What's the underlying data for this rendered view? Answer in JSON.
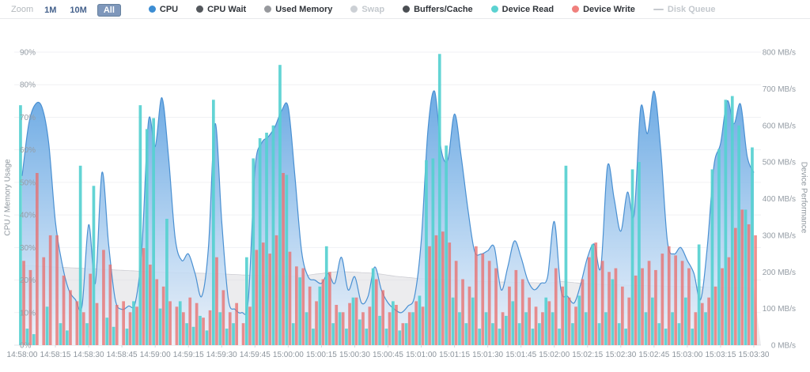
{
  "toolbar": {
    "zoom_label": "Zoom",
    "zoom_options": [
      {
        "label": "1M",
        "selected": false
      },
      {
        "label": "10M",
        "selected": false
      },
      {
        "label": "All",
        "selected": true
      }
    ]
  },
  "legend": {
    "items": [
      {
        "label": "CPU",
        "color": "#3c8dd3",
        "marker": "dot",
        "enabled": true
      },
      {
        "label": "CPU Wait",
        "color": "#54585d",
        "marker": "dot",
        "enabled": true
      },
      {
        "label": "Used Memory",
        "color": "#97999d",
        "marker": "dot",
        "enabled": true
      },
      {
        "label": "Swap",
        "color": "#ccd0d5",
        "marker": "dot",
        "enabled": false
      },
      {
        "label": "Buffers/Cache",
        "color": "#4a4e53",
        "marker": "dot",
        "enabled": true
      },
      {
        "label": "Device Read",
        "color": "#5bd2d1",
        "marker": "dot",
        "enabled": true
      },
      {
        "label": "Device Write",
        "color": "#f0807d",
        "marker": "dot",
        "enabled": true
      },
      {
        "label": "Disk Queue",
        "color": "#c6cacf",
        "marker": "line",
        "enabled": false
      }
    ]
  },
  "chart_data": {
    "type": "mixed-area-bar",
    "grid": true,
    "legend_position": "top",
    "x_start": "14:58:00",
    "x_end": "15:03:30",
    "point_interval_seconds": 3,
    "x_tick_interval_seconds": 15,
    "x_tick_labels": [
      "14:58:00",
      "14:58:15",
      "14:58:30",
      "14:58:45",
      "14:59:00",
      "14:59:15",
      "14:59:30",
      "14:59:45",
      "15:00:00",
      "15:00:15",
      "15:00:30",
      "15:00:45",
      "15:01:00",
      "15:01:15",
      "15:01:30",
      "15:01:45",
      "15:02:00",
      "15:02:15",
      "15:02:30",
      "15:02:45",
      "15:03:00",
      "15:03:15",
      "15:03:30"
    ],
    "left_axis": {
      "name": "CPU / Memory Usage",
      "min": 0,
      "max": 90,
      "tick_step": 10,
      "tick_suffix": "%"
    },
    "right_axis": {
      "name": "Device Performance",
      "min": 0,
      "max": 800,
      "tick_step": 100,
      "tick_suffix": " MB/s"
    },
    "series": [
      {
        "name": "CPU",
        "type": "area",
        "axis": "left",
        "unit": "%",
        "values": [
          52,
          68,
          74,
          73,
          62,
          38,
          25,
          17,
          14,
          12,
          37,
          19,
          53,
          31,
          14,
          11,
          12,
          13,
          30,
          69,
          61,
          76,
          58,
          33,
          26,
          28,
          22,
          15,
          30,
          68,
          38,
          14,
          11,
          10,
          14,
          54,
          62,
          64,
          67,
          72,
          73,
          52,
          29,
          21,
          20,
          19,
          22,
          19,
          27,
          17,
          21,
          13,
          15,
          24,
          17,
          13,
          11,
          10,
          12,
          15,
          32,
          66,
          78,
          60,
          57,
          71,
          58,
          42,
          29,
          28,
          29,
          30,
          17,
          24,
          32,
          27,
          20,
          17,
          19,
          21,
          38,
          17,
          15,
          13,
          19,
          27,
          31,
          24,
          55,
          45,
          35,
          47,
          40,
          73,
          65,
          78,
          60,
          32,
          28,
          30,
          26,
          22,
          14,
          30,
          55,
          62,
          75,
          68,
          74,
          58,
          53
        ]
      },
      {
        "name": "Used Memory",
        "type": "area",
        "axis": "left",
        "unit": "%",
        "values": [
          24.5,
          24.4,
          24.3,
          24.2,
          24.1,
          24,
          23.9,
          23.8,
          23.7,
          23.6,
          23.5,
          23.4,
          23.3,
          23.2,
          23.1,
          23,
          22.9,
          22.8,
          22.7,
          22.6,
          22.5,
          22.4,
          22.35,
          22.3,
          22.25,
          22.2,
          22.15,
          22.1,
          22.05,
          22,
          21.9,
          21.8,
          21.7,
          21.6,
          21.5,
          21.5,
          21.4,
          21.4,
          21.3,
          21.3,
          21.2,
          21.2,
          21.3,
          21.5,
          21.8,
          22,
          22.3,
          22.5,
          22.6,
          22.5,
          22.4,
          22.3,
          22.2,
          22,
          21.8,
          21.5,
          21.2,
          21,
          20.8,
          20.6,
          20.5,
          20.4,
          20.3,
          20.2,
          20.1,
          20,
          19.9,
          19.8,
          19.7,
          19.6,
          19.5,
          19.5,
          19.4,
          19.4,
          19.3,
          19.3,
          19.2,
          19.2,
          19.1,
          19.1,
          19.3,
          19.5,
          19.4,
          19.2,
          19,
          18.9,
          18.8,
          18.7,
          18.6,
          18.5,
          18.5,
          18.4,
          18.4,
          18.3,
          18.3,
          18.2,
          18.2,
          18.1,
          18.1,
          18,
          18,
          17.9,
          17.9,
          17.8,
          17.8,
          17.7,
          17.7,
          17.6,
          17.6,
          17.5,
          17.5
        ]
      },
      {
        "name": "Device Read",
        "type": "bar",
        "axis": "right",
        "unit": "MB/s",
        "values": [
          655,
          45,
          30,
          0,
          105,
          0,
          60,
          40,
          0,
          490,
          60,
          435,
          0,
          75,
          50,
          0,
          45,
          120,
          655,
          590,
          620,
          100,
          345,
          0,
          120,
          60,
          50,
          80,
          40,
          670,
          90,
          45,
          60,
          0,
          240,
          510,
          565,
          580,
          600,
          765,
          465,
          60,
          185,
          90,
          45,
          160,
          270,
          60,
          90,
          45,
          130,
          70,
          45,
          210,
          80,
          45,
          120,
          40,
          60,
          90,
          135,
          505,
          510,
          795,
          545,
          130,
          90,
          60,
          130,
          45,
          90,
          60,
          45,
          80,
          120,
          60,
          90,
          45,
          60,
          130,
          90,
          45,
          490,
          60,
          135,
          90,
          275,
          60,
          90,
          180,
          60,
          45,
          480,
          500,
          90,
          130,
          60,
          45,
          90,
          60,
          130,
          45,
          275,
          90,
          480,
          535,
          670,
          680,
          600,
          370,
          540
        ]
      },
      {
        "name": "Device Write",
        "type": "bar",
        "axis": "right",
        "unit": "MB/s",
        "values": [
          230,
          205,
          470,
          240,
          300,
          300,
          190,
          150,
          120,
          90,
          195,
          115,
          260,
          220,
          110,
          120,
          90,
          105,
          265,
          220,
          180,
          160,
          120,
          105,
          90,
          130,
          115,
          75,
          95,
          240,
          150,
          90,
          115,
          60,
          105,
          260,
          280,
          250,
          300,
          470,
          255,
          215,
          210,
          160,
          120,
          180,
          200,
          110,
          90,
          115,
          130,
          90,
          105,
          180,
          150,
          90,
          110,
          60,
          90,
          120,
          105,
          270,
          300,
          310,
          280,
          230,
          180,
          160,
          270,
          250,
          230,
          210,
          90,
          160,
          205,
          180,
          130,
          105,
          90,
          120,
          210,
          160,
          130,
          105,
          180,
          240,
          280,
          230,
          200,
          210,
          160,
          130,
          190,
          210,
          230,
          205,
          250,
          270,
          245,
          230,
          210,
          90,
          115,
          130,
          160,
          210,
          240,
          320,
          370,
          330,
          300
        ]
      }
    ],
    "colors": {
      "cpu_line": "#4a90d2",
      "cpu_gradient_top": "#4292dc",
      "cpu_gradient_bottom": "#edf3fb",
      "memory_fill": "#d9d9de",
      "memory_line": "#c9c9cf",
      "read_bar": "#56d0d0",
      "write_bar": "#e96b69",
      "gridline": "#f0f1f4",
      "axis_text": "#949ca4"
    }
  }
}
